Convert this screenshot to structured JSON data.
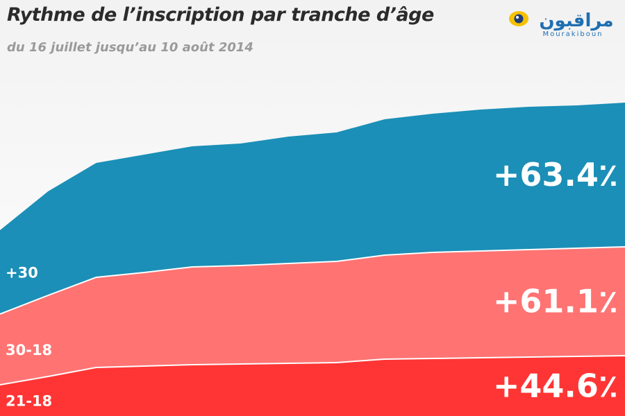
{
  "header": {
    "title": "Rythme de l’inscription par tranche d’âge",
    "subtitle": "du 16 juillet jusqu’au 10 août 2014"
  },
  "logo": {
    "name": "Mourakiboun",
    "arabic_text": "مراقبون",
    "colors": {
      "eye": "#f6c200",
      "text": "#1f6fb2"
    }
  },
  "chart_data": {
    "type": "area",
    "stacked": true,
    "x": [
      0,
      1,
      2,
      3,
      4,
      5,
      6,
      7,
      8,
      9,
      10,
      11,
      12,
      13
    ],
    "ylim": [
      0,
      480
    ],
    "series": [
      {
        "name": "21-18",
        "color": "#ff3535",
        "annotation": "+44.6٪",
        "values": [
          45,
          57,
          70,
          72,
          74,
          75,
          76,
          77,
          82,
          83,
          84,
          85,
          86,
          87
        ]
      },
      {
        "name": "30-18",
        "color": "#ff7373",
        "annotation": "+61.1٪",
        "values": [
          102,
          117,
          130,
          135,
          141,
          142,
          144,
          146,
          150,
          153,
          154,
          155,
          156,
          157
        ]
      },
      {
        "name": "+30",
        "color": "#1b8fb7",
        "annotation": "+63.4٪",
        "values": [
          121,
          150,
          165,
          170,
          174,
          176,
          183,
          186,
          196,
          200,
          204,
          206,
          206,
          208
        ]
      }
    ],
    "grid": false,
    "legend": "none"
  }
}
